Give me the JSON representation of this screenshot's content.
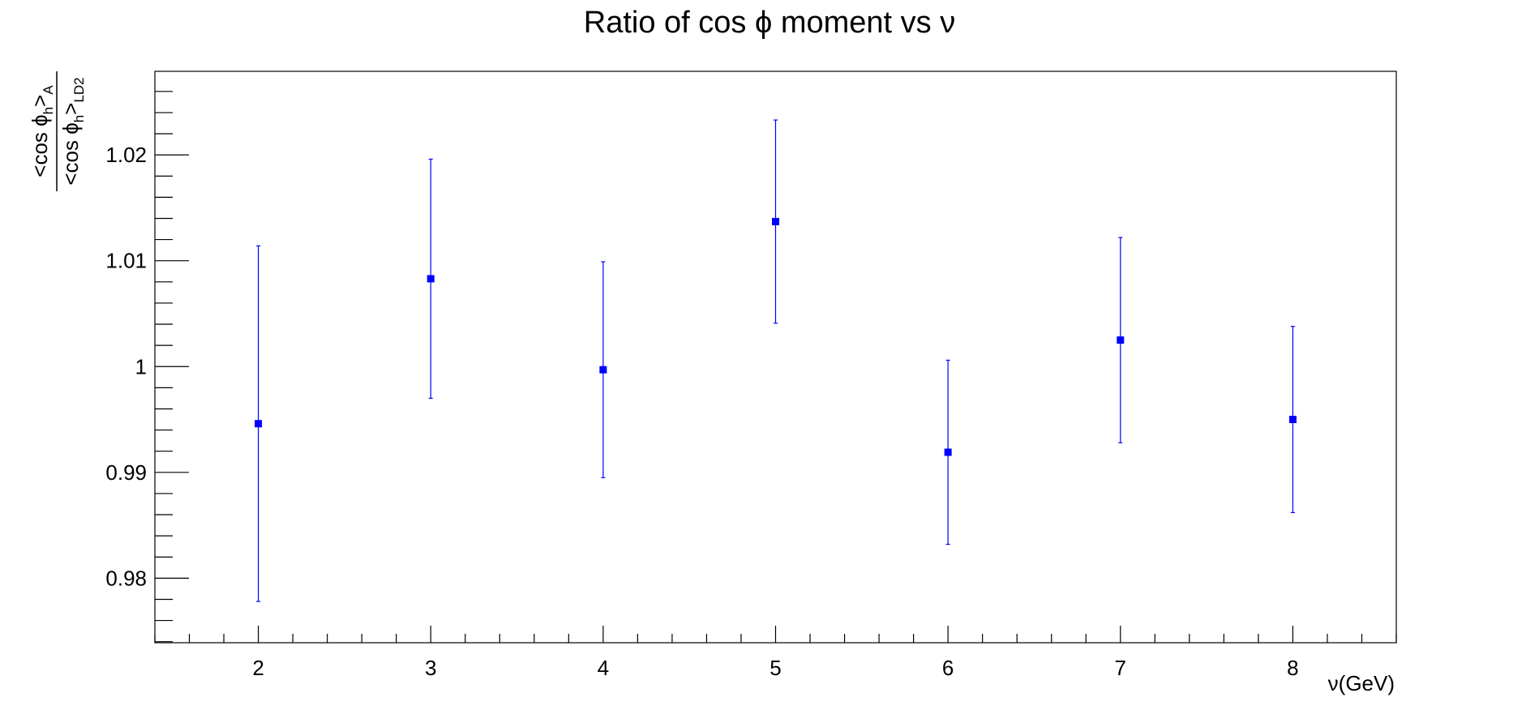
{
  "chart_data": {
    "type": "scatter",
    "title": "Ratio of cos ϕ moment vs ν",
    "xlabel": "ν(GeV)",
    "ylabel": {
      "numerator": "<cos ϕ",
      "numerator_sub": "h",
      "numerator_close": ">",
      "numerator_sub2": "A",
      "denominator": "<cos ϕ",
      "denominator_sub": "h",
      "denominator_close": ">",
      "denominator_sub2": "LD2"
    },
    "xlim": [
      1.4,
      8.6
    ],
    "ylim": [
      0.9739,
      1.0279
    ],
    "x_ticks": [
      2,
      3,
      4,
      5,
      6,
      7,
      8
    ],
    "x_tick_labels": [
      "2",
      "3",
      "4",
      "5",
      "6",
      "7",
      "8"
    ],
    "y_ticks": [
      0.98,
      0.99,
      1.0,
      1.01,
      1.02
    ],
    "y_tick_labels": [
      "0.98",
      "0.99",
      "1",
      "1.01",
      "1.02"
    ],
    "grid": false,
    "legend": "none",
    "series": [
      {
        "color": "#0000ff",
        "marker": "square",
        "points": [
          {
            "x": 2,
            "y": 0.9946,
            "err": 0.0168
          },
          {
            "x": 3,
            "y": 1.0083,
            "err": 0.0113
          },
          {
            "x": 4,
            "y": 0.9997,
            "err": 0.0102
          },
          {
            "x": 5,
            "y": 1.0137,
            "err": 0.0096
          },
          {
            "x": 6,
            "y": 0.9919,
            "err": 0.0087
          },
          {
            "x": 7,
            "y": 1.0025,
            "err": 0.0097
          },
          {
            "x": 8,
            "y": 0.995,
            "err": 0.0088
          }
        ]
      }
    ]
  }
}
